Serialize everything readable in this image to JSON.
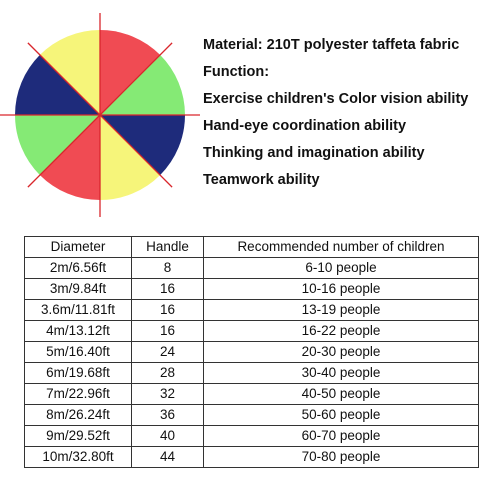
{
  "product_image": {
    "segment_colors": [
      "#f04b53",
      "#85ea75",
      "#1e2b7b",
      "#f6f57a",
      "#f04b53",
      "#85ea75",
      "#1e2b7b",
      "#f6f57a"
    ],
    "handle_color": "#d9262c"
  },
  "features": [
    "Material:  210T polyester taffeta fabric",
    "Function:",
    "Exercise children's Color vision ability",
    "Hand-eye coordination ability",
    "Thinking and imagination ability",
    "Teamwork ability"
  ],
  "table": {
    "headers": [
      "Diameter",
      "Handle",
      "Recommended number of children"
    ],
    "rows": [
      [
        "2m/6.56ft",
        "8",
        "6-10 people"
      ],
      [
        "3m/9.84ft",
        "16",
        "10-16 people"
      ],
      [
        "3.6m/11.81ft",
        "16",
        "13-19 people"
      ],
      [
        "4m/13.12ft",
        "16",
        "16-22 people"
      ],
      [
        "5m/16.40ft",
        "24",
        "20-30 people"
      ],
      [
        "6m/19.68ft",
        "28",
        "30-40 people"
      ],
      [
        "7m/22.96ft",
        "32",
        "40-50 people"
      ],
      [
        "8m/26.24ft",
        "36",
        "50-60 people"
      ],
      [
        "9m/29.52ft",
        "40",
        "60-70 people"
      ],
      [
        "10m/32.80ft",
        "44",
        "70-80 people"
      ]
    ]
  }
}
